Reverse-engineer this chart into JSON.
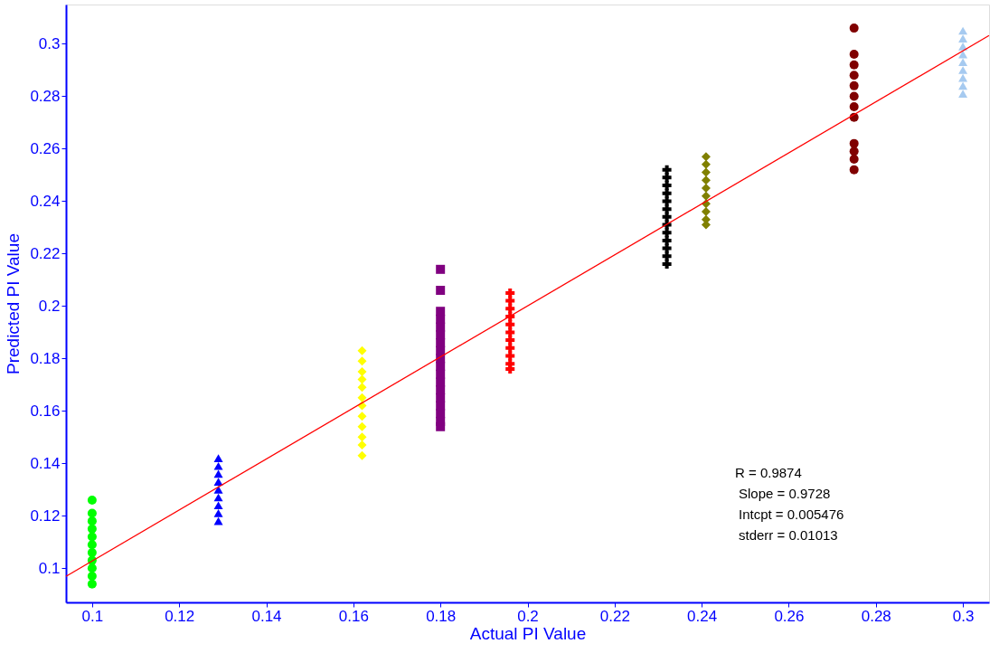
{
  "chart_data": {
    "type": "scatter",
    "xlabel": "Actual PI Value",
    "ylabel": "Predicted PI Value",
    "xlim": [
      0.094,
      0.306
    ],
    "ylim": [
      0.087,
      0.315
    ],
    "xticks": [
      0.1,
      0.12,
      0.14,
      0.16,
      0.18,
      0.2,
      0.22,
      0.24,
      0.26,
      0.28,
      0.3
    ],
    "yticks": [
      0.1,
      0.12,
      0.14,
      0.16,
      0.18,
      0.2,
      0.22,
      0.24,
      0.26,
      0.28,
      0.3
    ],
    "grid": false,
    "annotations": [
      "R = 0.9874",
      "Slope = 0.9728",
      "Intcpt = 0.005476",
      "stderr = 0.01013"
    ],
    "series": [
      {
        "color": "#00ff00",
        "marker": "circle",
        "x": [
          0.1,
          0.1,
          0.1,
          0.1,
          0.1,
          0.1,
          0.1,
          0.1,
          0.1,
          0.1,
          0.1
        ],
        "values": [
          0.126,
          0.121,
          0.118,
          0.115,
          0.112,
          0.109,
          0.106,
          0.103,
          0.1,
          0.097,
          0.094
        ]
      },
      {
        "color": "#0000ff",
        "marker": "triangle",
        "x": [
          0.129,
          0.129,
          0.129,
          0.129,
          0.129,
          0.129,
          0.129,
          0.129,
          0.129
        ],
        "values": [
          0.142,
          0.139,
          0.136,
          0.133,
          0.13,
          0.127,
          0.124,
          0.121,
          0.118
        ]
      },
      {
        "color": "#ffff00",
        "marker": "diamond",
        "x": [
          0.162,
          0.162,
          0.162,
          0.162,
          0.162,
          0.162,
          0.162,
          0.162,
          0.162,
          0.162,
          0.162,
          0.162
        ],
        "values": [
          0.183,
          0.179,
          0.175,
          0.172,
          0.169,
          0.165,
          0.162,
          0.158,
          0.154,
          0.15,
          0.147,
          0.143
        ]
      },
      {
        "color": "#800080",
        "marker": "square",
        "x": [
          0.18,
          0.18,
          0.18,
          0.18,
          0.18,
          0.18,
          0.18,
          0.18,
          0.18,
          0.18,
          0.18,
          0.18,
          0.18,
          0.18,
          0.18,
          0.18,
          0.18,
          0.18
        ],
        "values": [
          0.214,
          0.206,
          0.198,
          0.195,
          0.192,
          0.189,
          0.186,
          0.183,
          0.18,
          0.177,
          0.174,
          0.171,
          0.168,
          0.165,
          0.162,
          0.159,
          0.156,
          0.154
        ]
      },
      {
        "color": "#ff0000",
        "marker": "cross",
        "x": [
          0.196,
          0.196,
          0.196,
          0.196,
          0.196,
          0.196,
          0.196,
          0.196,
          0.196,
          0.196,
          0.196
        ],
        "values": [
          0.205,
          0.202,
          0.199,
          0.196,
          0.193,
          0.19,
          0.187,
          0.184,
          0.181,
          0.178,
          0.176
        ]
      },
      {
        "color": "#000000",
        "marker": "cross",
        "x": [
          0.232,
          0.232,
          0.232,
          0.232,
          0.232,
          0.232,
          0.232,
          0.232,
          0.232,
          0.232,
          0.232,
          0.232,
          0.232
        ],
        "values": [
          0.252,
          0.249,
          0.246,
          0.243,
          0.24,
          0.237,
          0.234,
          0.231,
          0.228,
          0.225,
          0.222,
          0.219,
          0.216
        ]
      },
      {
        "color": "#808000",
        "marker": "diamond",
        "x": [
          0.241,
          0.241,
          0.241,
          0.241,
          0.241,
          0.241,
          0.241,
          0.241,
          0.241,
          0.241
        ],
        "values": [
          0.257,
          0.254,
          0.251,
          0.248,
          0.245,
          0.242,
          0.239,
          0.236,
          0.233,
          0.231
        ]
      },
      {
        "color": "#800000",
        "marker": "circle",
        "x": [
          0.275,
          0.275,
          0.275,
          0.275,
          0.275,
          0.275,
          0.275,
          0.275,
          0.275,
          0.275,
          0.275,
          0.275
        ],
        "values": [
          0.306,
          0.296,
          0.292,
          0.288,
          0.284,
          0.28,
          0.276,
          0.272,
          0.262,
          0.259,
          0.256,
          0.252
        ]
      },
      {
        "color": "#a6caf0",
        "marker": "triangle",
        "x": [
          0.3,
          0.3,
          0.3,
          0.3,
          0.3,
          0.3,
          0.3,
          0.3,
          0.3
        ],
        "values": [
          0.305,
          0.302,
          0.299,
          0.296,
          0.293,
          0.29,
          0.287,
          0.284,
          0.281
        ]
      },
      {
        "type": "line",
        "color": "#ff0000",
        "line_style": "solid",
        "x": [
          0.094,
          0.306
        ],
        "values": [
          0.0969,
          0.3032
        ]
      }
    ]
  }
}
